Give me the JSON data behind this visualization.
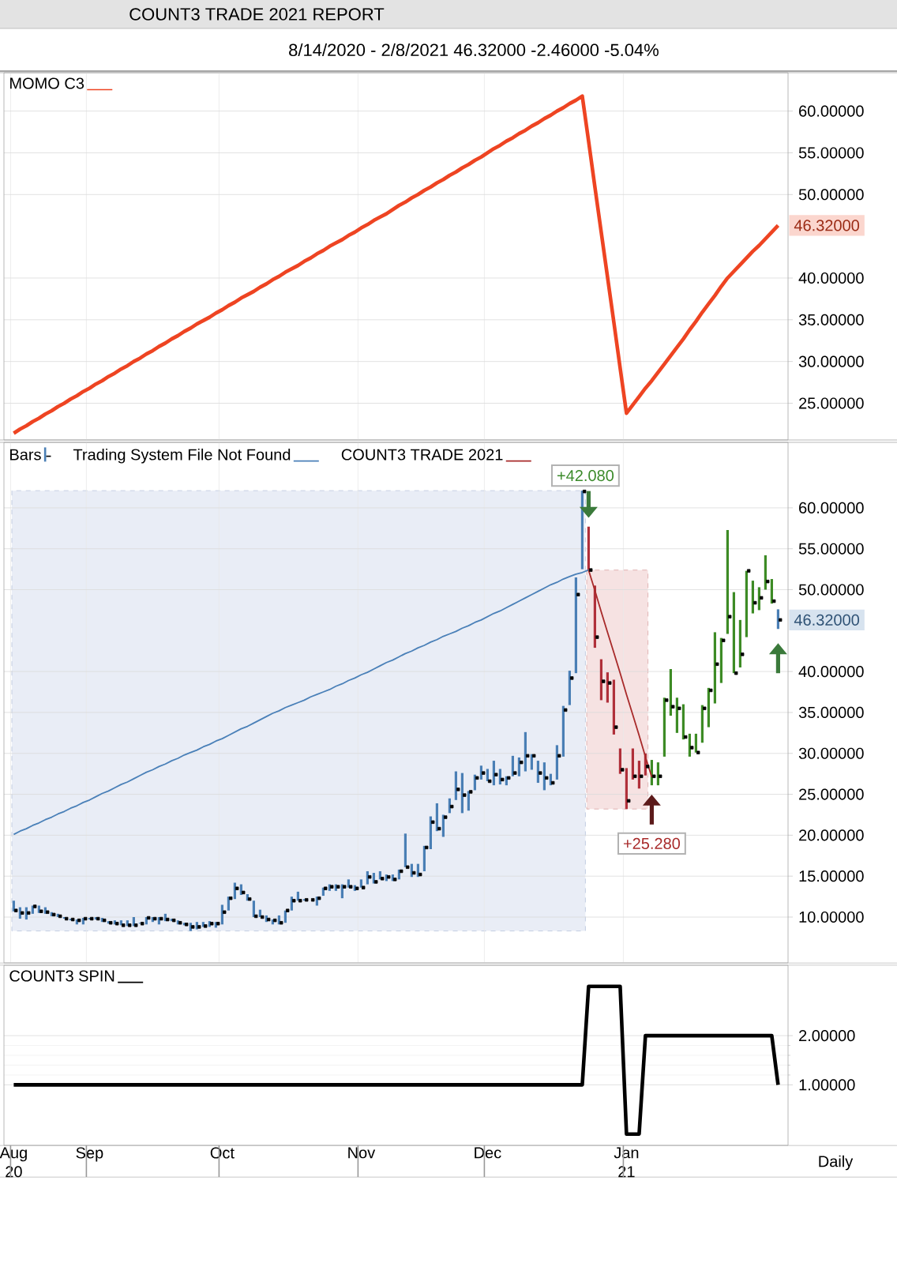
{
  "chart_data": [
    {
      "type": "line",
      "title": "COUNT3 TRADE 2021 REPORT",
      "subtitle": "8/14/2020 - 2/8/2021    46.32000   -2.46000   -5.04%",
      "series": [
        {
          "name": "MOMO C3",
          "color": "#ee4422",
          "values": [
            21.4,
            21.9,
            22.3,
            22.8,
            23.2,
            23.7,
            24.1,
            24.6,
            25.0,
            25.5,
            25.9,
            26.4,
            26.8,
            27.3,
            27.7,
            28.2,
            28.6,
            29.1,
            29.5,
            30.0,
            30.4,
            30.9,
            31.3,
            31.8,
            32.2,
            32.7,
            33.1,
            33.6,
            34.0,
            34.5,
            34.9,
            35.3,
            35.8,
            36.2,
            36.7,
            37.1,
            37.6,
            38.0,
            38.4,
            38.9,
            39.3,
            39.8,
            40.2,
            40.7,
            41.1,
            41.5,
            42.0,
            42.4,
            42.9,
            43.3,
            43.8,
            44.2,
            44.6,
            45.1,
            45.5,
            46.0,
            46.4,
            46.9,
            47.3,
            47.7,
            48.2,
            48.7,
            49.1,
            49.6,
            50.0,
            50.5,
            50.9,
            51.4,
            51.8,
            52.3,
            52.7,
            53.2,
            53.6,
            54.1,
            54.5,
            55.0,
            55.5,
            55.9,
            56.4,
            56.8,
            57.3,
            57.7,
            58.2,
            58.6,
            59.1,
            59.5,
            60.0,
            60.4,
            60.9,
            61.3,
            61.8,
            56.4,
            50.9,
            45.5,
            40.1,
            34.7,
            29.2,
            23.8,
            24.8,
            25.8,
            26.8,
            27.7,
            28.7,
            29.7,
            30.7,
            31.7,
            32.7,
            33.8,
            34.8,
            35.9,
            36.9,
            37.9,
            39.0,
            40.0,
            40.8,
            41.6,
            42.4,
            43.2,
            43.9,
            44.7,
            45.5,
            46.3
          ]
        }
      ],
      "ylim": [
        20.6,
        64.6
      ],
      "yticks": [
        {
          "value": 25,
          "label": "25.00000"
        },
        {
          "value": 30,
          "label": "30.00000"
        },
        {
          "value": 35,
          "label": "35.00000"
        },
        {
          "value": 40,
          "label": "40.00000"
        },
        {
          "value": 50,
          "label": "50.00000"
        },
        {
          "value": 55,
          "label": "55.00000"
        },
        {
          "value": 60,
          "label": "60.00000"
        }
      ],
      "grid": "y",
      "legend": "top left",
      "tick_labels": "y",
      "annotations": [
        "46.32000"
      ]
    },
    {
      "type": "bar",
      "series": [
        {
          "name": "Bars",
          "base": [
            10.7,
            9.8,
            9.7,
            10.4,
            10.5,
            10.4,
            10.1,
            10.0,
            9.8,
            9.6,
            9.1,
            9.1,
            9.7,
            9.7,
            9.4,
            9.2,
            9.1,
            9.0,
            8.9,
            8.9,
            9.2,
            9.1,
            9.4,
            9.1,
            9.5,
            9.5,
            9.1,
            9.0,
            8.3,
            8.5,
            8.8,
            8.8,
            8.7,
            9.1,
            10.8,
            12.2,
            12.7,
            12.0,
            10.0,
            10.0,
            9.4,
            9.1,
            9.1,
            9.3,
            10.8,
            12.0,
            12.0,
            null,
            11.4,
            12.6,
            13.2,
            13.2,
            12.3,
            13.6,
            13.2,
            13.6,
            14.0,
            14.1,
            14.6,
            14.4,
            14.4,
            14.6,
            16.1,
            14.9,
            14.9,
            15.6,
            18.3,
            20.5,
            19.8,
            22.7,
            24.3,
            22.7,
            23.0,
            25.5,
            26.8,
            26.6,
            26.1,
            26.2,
            26.1,
            27.2,
            27.2,
            27.8,
            28.0,
            26.4,
            25.5,
            26.1,
            26.8,
            29.6,
            35.9,
            39.8,
            52.5,
            52.4,
            42.9,
            36.5,
            36.2,
            32.3,
            27.5,
            23.2,
            26.8,
            25.7,
            27.3,
            26.1,
            26.1,
            29.6,
            34.6,
            32.5,
            31.7,
            29.6,
            30.1,
            31.3,
            33.2,
            36.1,
            38.6,
            44.6,
            39.8,
            40.5,
            44.2,
            47.1,
            47.5,
            50.0,
            48.3,
            45.2
          ],
          "values": [
            1.3,
            1.4,
            1.5,
            1.0,
            0.9,
            0.8,
            0.5,
            0.4,
            0.2,
            0.2,
            0.6,
            0.8,
            0.2,
            0.3,
            0.5,
            0.3,
            0.5,
            0.6,
            0.7,
            1.1,
            0.1,
            0.9,
            0.6,
            0.9,
            0.9,
            0.3,
            0.5,
            0.3,
            1.0,
            0.9,
            0.6,
            0.7,
            0.7,
            2.4,
            1.7,
            2.0,
            1.3,
            0.8,
            2.0,
            0.9,
            0.8,
            0.6,
            1.1,
            1.5,
            1.7,
            1.1,
            0.2,
            null,
            1.1,
            1.0,
            0.8,
            0.8,
            1.7,
            1.0,
            0.7,
            1.0,
            1.6,
            1.3,
            1.0,
            0.8,
            0.8,
            1.2,
            4.1,
            1.6,
            1.6,
            3.1,
            4.0,
            3.4,
            2.7,
            1.8,
            3.5,
            4.9,
            2.4,
            1.9,
            1.7,
            1.5,
            3.0,
            1.9,
            1.1,
            2.5,
            2.3,
            4.8,
            1.9,
            2.7,
            3.4,
            1.4,
            4.2,
            6.2,
            4.2,
            11.7,
            9.6,
            5.3,
            7.6,
            5.0,
            3.7,
            6.7,
            3.1,
            5.0,
            3.8,
            3.4,
            2.7,
            3.1,
            2.8,
            7.2,
            5.7,
            4.3,
            4.3,
            2.8,
            2.3,
            4.6,
            4.8,
            8.7,
            5.5,
            12.7,
            9.9,
            5.8,
            8.1,
            4.0,
            2.8,
            4.2,
            3.0,
            2.4
          ],
          "colors": [
            "#4a7fb5",
            "#4a7fb5",
            "#4a7fb5",
            "#4a7fb5",
            "#4a7fb5",
            "#4a7fb5",
            "#4a7fb5",
            "#4a7fb5",
            "#4a7fb5",
            "#4a7fb5",
            "#4a7fb5",
            "#4a7fb5",
            "#4a7fb5",
            "#4a7fb5",
            "#4a7fb5",
            "#4a7fb5",
            "#4a7fb5",
            "#4a7fb5",
            "#4a7fb5",
            "#4a7fb5",
            "#4a7fb5",
            "#4a7fb5",
            "#4a7fb5",
            "#4a7fb5",
            "#4a7fb5",
            "#4a7fb5",
            "#4a7fb5",
            "#4a7fb5",
            "#4a7fb5",
            "#4a7fb5",
            "#4a7fb5",
            "#4a7fb5",
            "#4a7fb5",
            "#4a7fb5",
            "#4a7fb5",
            "#4a7fb5",
            "#4a7fb5",
            "#4a7fb5",
            "#4a7fb5",
            "#4a7fb5",
            "#4a7fb5",
            "#4a7fb5",
            "#4a7fb5",
            "#4a7fb5",
            "#4a7fb5",
            "#4a7fb5",
            "#4a7fb5",
            "#4a7fb5",
            "#4a7fb5",
            "#4a7fb5",
            "#4a7fb5",
            "#4a7fb5",
            "#4a7fb5",
            "#4a7fb5",
            "#4a7fb5",
            "#4a7fb5",
            "#4a7fb5",
            "#4a7fb5",
            "#4a7fb5",
            "#4a7fb5",
            "#4a7fb5",
            "#4a7fb5",
            "#4a7fb5",
            "#4a7fb5",
            "#4a7fb5",
            "#4a7fb5",
            "#4a7fb5",
            "#4a7fb5",
            "#4a7fb5",
            "#4a7fb5",
            "#4a7fb5",
            "#4a7fb5",
            "#4a7fb5",
            "#4a7fb5",
            "#4a7fb5",
            "#4a7fb5",
            "#4a7fb5",
            "#4a7fb5",
            "#4a7fb5",
            "#4a7fb5",
            "#4a7fb5",
            "#4a7fb5",
            "#4a7fb5",
            "#4a7fb5",
            "#4a7fb5",
            "#4a7fb5",
            "#4a7fb5",
            "#4a7fb5",
            "#4a7fb5",
            "#4a7fb5",
            "#4a7fb5",
            "#b0303a",
            "#b0303a",
            "#b0303a",
            "#b0303a",
            "#b0303a",
            "#b0303a",
            "#b0303a",
            "#b0303a",
            "#b0303a",
            "#b0303a",
            "#3d8b25",
            "#3d8b25",
            "#3d8b25",
            "#3d8b25",
            "#3d8b25",
            "#3d8b25",
            "#3d8b25",
            "#3d8b25",
            "#3d8b25",
            "#3d8b25",
            "#3d8b25",
            "#3d8b25",
            "#3d8b25",
            "#3d8b25",
            "#3d8b25",
            "#3d8b25",
            "#3d8b25",
            "#3d8b25",
            "#3d8b25",
            "#3d8b25",
            "#4a7fb5"
          ]
        },
        {
          "type": "scatter",
          "color": "#000000",
          "marker": "square",
          "values": [
            10.8,
            10.5,
            10.5,
            11.3,
            10.7,
            10.6,
            10.3,
            10.1,
            9.8,
            9.7,
            9.6,
            9.8,
            9.8,
            9.8,
            9.6,
            9.3,
            9.2,
            9.0,
            9.0,
            9.0,
            9.2,
            9.9,
            9.8,
            9.8,
            9.7,
            9.6,
            9.3,
            9.1,
            8.8,
            8.8,
            8.9,
            9.2,
            9.2,
            10.6,
            12.3,
            13.5,
            13.0,
            12.2,
            10.1,
            10.0,
            9.7,
            9.6,
            9.3,
            10.8,
            12.0,
            12.0,
            12.1,
            12.1,
            12.3,
            13.5,
            13.7,
            13.7,
            13.7,
            13.7,
            13.5,
            13.6,
            14.9,
            14.3,
            14.7,
            14.9,
            14.6,
            15.6,
            16.1,
            15.4,
            15.2,
            18.5,
            21.6,
            20.8,
            22.2,
            23.5,
            25.6,
            24.9,
            25.3,
            27.0,
            27.6,
            26.6,
            27.4,
            26.8,
            27.0,
            27.6,
            28.9,
            29.7,
            29.7,
            27.6,
            27.0,
            26.4,
            29.7,
            35.3,
            39.2,
            49.4,
            62.0,
            52.4,
            44.2,
            38.8,
            38.6,
            33.2,
            28.0,
            24.2,
            27.2,
            27.2,
            28.4,
            27.2,
            27.2,
            36.5,
            35.7,
            35.5,
            32.0,
            30.7,
            30.1,
            35.5,
            37.7,
            40.9,
            43.8,
            46.7,
            39.8,
            42.1,
            52.3,
            48.4,
            49.0,
            51.0,
            48.6,
            46.3
          ]
        },
        {
          "type": "line",
          "name": "Trading System File Not Found",
          "color": "#4a80b8",
          "values": [
            20.1,
            20.5,
            20.8,
            21.2,
            21.5,
            21.9,
            22.2,
            22.6,
            22.9,
            23.3,
            23.6,
            24.0,
            24.3,
            24.7,
            25.1,
            25.4,
            25.8,
            26.2,
            26.5,
            26.9,
            27.3,
            27.7,
            28.0,
            28.4,
            28.7,
            29.1,
            29.4,
            29.8,
            30.1,
            30.4,
            30.8,
            31.1,
            31.5,
            31.8,
            32.2,
            32.6,
            33.0,
            33.3,
            33.7,
            34.1,
            34.5,
            34.9,
            35.2,
            35.6,
            35.9,
            36.2,
            36.5,
            36.9,
            37.2,
            37.5,
            37.8,
            38.2,
            38.5,
            38.9,
            39.2,
            39.6,
            39.9,
            40.3,
            40.7,
            41.1,
            41.4,
            41.8,
            42.2,
            42.5,
            42.9,
            43.2,
            43.6,
            43.9,
            44.3,
            44.6,
            44.9,
            45.3,
            45.6,
            46.0,
            46.3,
            46.7,
            47.1,
            47.4,
            47.8,
            48.2,
            48.6,
            49.0,
            49.4,
            49.8,
            50.2,
            50.6,
            50.9,
            51.3,
            51.6,
            51.9,
            52.1,
            52.4,
            null,
            null,
            null,
            null,
            null,
            null,
            null,
            null,
            null,
            null,
            null,
            null,
            null,
            null,
            null,
            null,
            null,
            null,
            null,
            null,
            null,
            null,
            null,
            null,
            null,
            null,
            null,
            null,
            null,
            null
          ]
        },
        {
          "type": "line",
          "name": "COUNT3 TRADE 2021",
          "color": "#a82a2a",
          "values": [
            null,
            null,
            null,
            null,
            null,
            null,
            null,
            null,
            null,
            null,
            null,
            null,
            null,
            null,
            null,
            null,
            null,
            null,
            null,
            null,
            null,
            null,
            null,
            null,
            null,
            null,
            null,
            null,
            null,
            null,
            null,
            null,
            null,
            null,
            null,
            null,
            null,
            null,
            null,
            null,
            null,
            null,
            null,
            null,
            null,
            null,
            null,
            null,
            null,
            null,
            null,
            null,
            null,
            null,
            null,
            null,
            null,
            null,
            null,
            null,
            null,
            null,
            null,
            null,
            null,
            null,
            null,
            null,
            null,
            null,
            null,
            null,
            null,
            null,
            null,
            null,
            null,
            null,
            null,
            null,
            null,
            null,
            null,
            null,
            null,
            null,
            null,
            null,
            null,
            null,
            null,
            52.4,
            49.9,
            47.3,
            44.8,
            42.3,
            39.8,
            37.2,
            34.7,
            32.2,
            29.6,
            27.1,
            null,
            null,
            null,
            null,
            null,
            null,
            null,
            null,
            null,
            null,
            null,
            null,
            null,
            null,
            null,
            null,
            null,
            null,
            null,
            null
          ]
        }
      ],
      "ylim": [
        4.4,
        68.0
      ],
      "yticks": [
        {
          "value": 10,
          "label": "10.00000"
        },
        {
          "value": 15,
          "label": "15.00000"
        },
        {
          "value": 20,
          "label": "20.00000"
        },
        {
          "value": 25,
          "label": "25.00000"
        },
        {
          "value": 30,
          "label": "30.00000"
        },
        {
          "value": 35,
          "label": "35.00000"
        },
        {
          "value": 40,
          "label": "40.00000"
        },
        {
          "value": 50,
          "label": "50.00000"
        },
        {
          "value": 55,
          "label": "55.00000"
        },
        {
          "value": 60,
          "label": "60.00000"
        }
      ],
      "grid": "y",
      "legend": "top left",
      "tick_labels": "y",
      "annotations": [
        "46.32000",
        "+42.080",
        "+25.280"
      ]
    },
    {
      "type": "line",
      "categories": [
        "Aug 20",
        null,
        null,
        null,
        null,
        null,
        null,
        null,
        null,
        null,
        null,
        null,
        "Sep",
        null,
        null,
        null,
        null,
        null,
        null,
        null,
        null,
        null,
        null,
        null,
        null,
        null,
        null,
        null,
        null,
        null,
        null,
        null,
        null,
        "Oct",
        null,
        null,
        null,
        null,
        null,
        null,
        null,
        null,
        null,
        null,
        null,
        null,
        null,
        null,
        null,
        null,
        null,
        null,
        null,
        null,
        null,
        "Nov",
        null,
        null,
        null,
        null,
        null,
        null,
        null,
        null,
        null,
        null,
        null,
        null,
        null,
        null,
        null,
        null,
        null,
        null,
        null,
        "Dec",
        null,
        null,
        null,
        null,
        null,
        null,
        null,
        null,
        null,
        null,
        null,
        null,
        null,
        null,
        null,
        null,
        null,
        null,
        null,
        null,
        null,
        "Jan 21",
        null,
        null,
        null,
        null,
        null,
        null,
        null,
        null,
        null,
        null,
        null,
        null,
        null,
        null,
        null,
        null,
        null,
        null,
        null,
        null,
        null,
        null,
        null,
        null
      ],
      "series": [
        {
          "name": "COUNT3 SPIN",
          "color": "#000000",
          "values": [
            1,
            1,
            1,
            1,
            1,
            1,
            1,
            1,
            1,
            1,
            1,
            1,
            1,
            1,
            1,
            1,
            1,
            1,
            1,
            1,
            1,
            1,
            1,
            1,
            1,
            1,
            1,
            1,
            1,
            1,
            1,
            1,
            1,
            1,
            1,
            1,
            1,
            1,
            1,
            1,
            1,
            1,
            1,
            1,
            1,
            1,
            1,
            1,
            1,
            1,
            1,
            1,
            1,
            1,
            1,
            1,
            1,
            1,
            1,
            1,
            1,
            1,
            1,
            1,
            1,
            1,
            1,
            1,
            1,
            1,
            1,
            1,
            1,
            1,
            1,
            1,
            1,
            1,
            1,
            1,
            1,
            1,
            1,
            1,
            1,
            1,
            1,
            1,
            1,
            1,
            1,
            3,
            3,
            3,
            3,
            3,
            3,
            0,
            0,
            0,
            2,
            2,
            2,
            2,
            2,
            2,
            2,
            2,
            2,
            2,
            2,
            2,
            2,
            2,
            2,
            2,
            2,
            2,
            2,
            2,
            2,
            1
          ]
        }
      ],
      "ylim": [
        -0.23,
        3.43
      ],
      "yticks": [
        {
          "value": 1,
          "label": "1.00000"
        },
        {
          "value": 2,
          "label": "2.00000"
        }
      ],
      "grid": "y",
      "legend": "top left",
      "annotations": [
        "Daily"
      ]
    }
  ]
}
